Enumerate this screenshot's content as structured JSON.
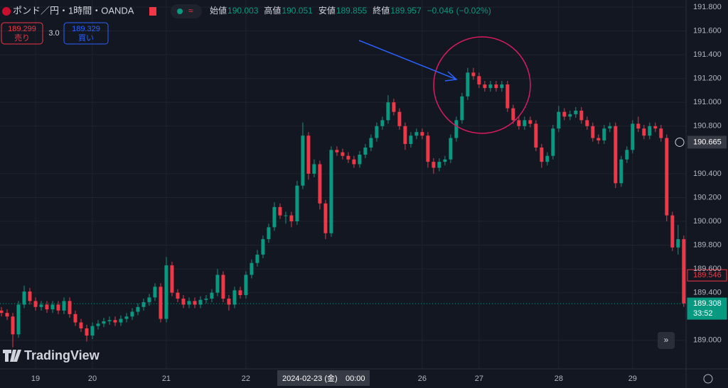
{
  "chart_data": {
    "type": "candlestick",
    "title": "ポンド／円・1時間・OANDA",
    "legend": {
      "open_label": "始値",
      "open": 190.003,
      "high_label": "高値",
      "high": 190.051,
      "low_label": "安値",
      "low": 189.855,
      "close_label": "終値",
      "close": 189.957,
      "change": {
        "value": -0.046,
        "label": "−0.046"
      },
      "change_pct": {
        "value": -0.02,
        "label": "(−0.02%)"
      }
    },
    "trade": {
      "sell_price": 189.299,
      "sell_label": "売り",
      "spread": {
        "value": 3,
        "label": "3.0"
      },
      "buy_price": 189.329,
      "buy_label": "買い"
    },
    "up_color": "#089981",
    "down_color": "#f23645",
    "open": [
      189.25,
      189.23,
      189.2,
      189.05,
      189.3,
      189.41,
      189.33,
      189.28,
      189.3,
      189.26,
      189.3,
      189.25,
      189.33,
      189.22,
      189.15,
      189.1,
      189.04,
      189.12,
      189.14,
      189.16,
      189.17,
      189.15,
      189.18,
      189.2,
      189.24,
      189.28,
      189.32,
      189.36,
      189.45,
      189.18,
      189.63,
      189.4,
      189.35,
      189.3,
      189.33,
      189.3,
      189.34,
      189.35,
      189.4,
      189.55,
      189.35,
      189.3,
      189.42,
      189.38,
      189.55,
      189.65,
      189.72,
      189.85,
      189.95,
      190.12,
      190.05,
      190.05,
      190.0,
      190.3,
      190.72,
      190.4,
      190.48,
      190.15,
      189.9,
      190.6,
      190.58,
      190.55,
      190.52,
      190.48,
      190.56,
      190.62,
      190.7,
      190.8,
      190.85,
      191.0,
      190.92,
      190.8,
      190.65,
      190.72,
      190.75,
      190.72,
      190.5,
      190.45,
      190.5,
      190.52,
      190.7,
      190.85,
      191.05,
      191.25,
      191.22,
      191.15,
      191.12,
      191.15,
      191.12,
      191.15,
      190.95,
      190.85,
      190.8,
      190.85,
      190.82,
      190.62,
      190.5,
      190.55,
      190.78,
      190.92,
      190.88,
      190.9,
      190.93,
      190.85,
      190.8,
      190.7,
      190.68,
      190.78,
      190.8,
      190.32,
      190.52,
      190.6,
      190.82,
      190.78,
      190.72,
      190.8,
      190.78,
      190.7,
      190.05,
      189.78,
      189.85
    ],
    "high": [
      189.28,
      189.26,
      189.23,
      189.33,
      189.46,
      189.44,
      189.36,
      189.33,
      189.33,
      189.33,
      189.33,
      189.36,
      189.36,
      189.25,
      189.18,
      189.13,
      189.15,
      189.17,
      189.19,
      189.2,
      189.2,
      189.21,
      189.23,
      189.27,
      189.31,
      189.35,
      189.39,
      189.48,
      189.48,
      189.7,
      189.66,
      189.43,
      189.38,
      189.36,
      189.36,
      189.37,
      189.38,
      189.43,
      189.6,
      189.58,
      189.38,
      189.45,
      189.45,
      189.58,
      189.68,
      189.76,
      189.88,
      189.98,
      190.16,
      190.15,
      190.08,
      190.08,
      190.34,
      190.83,
      190.75,
      190.52,
      190.51,
      190.18,
      190.63,
      190.63,
      190.61,
      190.58,
      190.55,
      190.59,
      190.65,
      190.73,
      190.83,
      190.88,
      191.06,
      191.03,
      190.95,
      190.83,
      190.75,
      190.78,
      190.78,
      190.75,
      190.53,
      190.53,
      190.55,
      190.73,
      190.88,
      191.08,
      191.29,
      191.29,
      191.25,
      191.18,
      191.18,
      191.18,
      191.18,
      191.18,
      190.98,
      190.88,
      190.88,
      190.88,
      190.85,
      190.65,
      190.58,
      190.81,
      190.97,
      190.95,
      190.93,
      190.96,
      190.96,
      190.88,
      190.83,
      190.73,
      190.81,
      190.83,
      190.83,
      190.55,
      190.63,
      190.85,
      190.88,
      190.81,
      190.83,
      190.83,
      190.81,
      190.73,
      190.08,
      189.97,
      189.88
    ],
    "low": [
      189.2,
      189.17,
      188.94,
      189.02,
      189.27,
      189.3,
      189.25,
      189.25,
      189.23,
      189.23,
      189.22,
      189.22,
      189.19,
      189.12,
      189.07,
      188.99,
      189.01,
      189.09,
      189.11,
      189.13,
      189.12,
      189.12,
      189.15,
      189.17,
      189.21,
      189.25,
      189.29,
      189.33,
      189.15,
      189.15,
      189.37,
      189.32,
      189.27,
      189.27,
      189.27,
      189.27,
      189.31,
      189.32,
      189.37,
      189.32,
      189.25,
      189.27,
      189.35,
      189.35,
      189.52,
      189.62,
      189.69,
      189.82,
      189.92,
      190.02,
      189.98,
      189.95,
      189.97,
      190.27,
      190.35,
      190.37,
      190.1,
      189.85,
      189.87,
      190.55,
      190.52,
      190.49,
      190.45,
      190.45,
      190.53,
      190.59,
      190.67,
      190.77,
      190.82,
      190.89,
      190.77,
      190.6,
      190.62,
      190.69,
      190.69,
      190.45,
      190.4,
      190.42,
      190.47,
      190.49,
      190.67,
      190.82,
      191.02,
      191.19,
      191.12,
      191.09,
      191.09,
      191.09,
      191.09,
      190.92,
      190.82,
      190.77,
      190.77,
      190.79,
      190.59,
      190.45,
      190.47,
      190.52,
      190.75,
      190.85,
      190.85,
      190.87,
      190.82,
      190.77,
      190.67,
      190.65,
      190.65,
      190.75,
      190.28,
      190.29,
      190.49,
      190.57,
      190.75,
      190.69,
      190.69,
      190.75,
      190.67,
      190.0,
      189.75,
      189.72,
      189.28
    ],
    "close": [
      189.23,
      189.2,
      189.05,
      189.3,
      189.41,
      189.33,
      189.28,
      189.3,
      189.26,
      189.3,
      189.25,
      189.33,
      189.22,
      189.15,
      189.1,
      189.04,
      189.12,
      189.14,
      189.16,
      189.17,
      189.15,
      189.18,
      189.2,
      189.24,
      189.28,
      189.32,
      189.36,
      189.45,
      189.18,
      189.63,
      189.4,
      189.35,
      189.3,
      189.33,
      189.3,
      189.34,
      189.35,
      189.4,
      189.55,
      189.35,
      189.3,
      189.42,
      189.38,
      189.55,
      189.65,
      189.72,
      189.85,
      189.95,
      190.12,
      190.05,
      190.05,
      190.0,
      190.3,
      190.72,
      190.4,
      190.48,
      190.15,
      189.9,
      190.6,
      190.58,
      190.55,
      190.52,
      190.48,
      190.56,
      190.62,
      190.7,
      190.8,
      190.85,
      191.0,
      190.92,
      190.8,
      190.65,
      190.72,
      190.75,
      190.72,
      190.5,
      190.45,
      190.5,
      190.52,
      190.7,
      190.85,
      191.05,
      191.25,
      191.22,
      191.15,
      191.12,
      191.15,
      191.12,
      191.15,
      190.95,
      190.85,
      190.8,
      190.85,
      190.82,
      190.62,
      190.5,
      190.55,
      190.78,
      190.92,
      190.88,
      190.9,
      190.93,
      190.85,
      190.8,
      190.7,
      190.68,
      190.78,
      190.8,
      190.32,
      190.52,
      190.6,
      190.82,
      190.78,
      190.72,
      190.8,
      190.78,
      190.7,
      190.05,
      189.78,
      189.85,
      189.31
    ],
    "xlim": [
      -0.25,
      120.4
    ],
    "ylim": [
      188.76,
      191.86
    ],
    "xticks": [
      {
        "value": 6,
        "label": "19"
      },
      {
        "value": 16,
        "label": "20"
      },
      {
        "value": 29,
        "label": "21"
      },
      {
        "value": 43,
        "label": "22"
      },
      {
        "value": 74,
        "label": "26"
      },
      {
        "value": 84,
        "label": "27"
      },
      {
        "value": 98,
        "label": "28"
      },
      {
        "value": 111,
        "label": "29"
      }
    ],
    "yticks": [
      {
        "value": 189,
        "label": "189.000"
      },
      {
        "value": 189.4,
        "label": "189.400"
      },
      {
        "value": 189.6,
        "label": "189.600"
      },
      {
        "value": 189.8,
        "label": "189.800"
      },
      {
        "value": 190,
        "label": "190.000"
      },
      {
        "value": 190.2,
        "label": "190.200"
      },
      {
        "value": 190.4,
        "label": "190.400"
      },
      {
        "value": 190.8,
        "label": "190.800"
      },
      {
        "value": 191,
        "label": "191.000"
      },
      {
        "value": 191.2,
        "label": "191.200"
      },
      {
        "value": 191.4,
        "label": "191.400"
      },
      {
        "value": 191.6,
        "label": "191.600"
      },
      {
        "value": 191.8,
        "label": "191.800"
      }
    ],
    "grid": true,
    "crosshair": {
      "price": 190.665,
      "date": "2024-02-23 (金)",
      "time": "00:00"
    },
    "price_lines": [
      {
        "value": 189.546,
        "color": "#f23645"
      },
      {
        "value": 189.308,
        "color": "#089981",
        "countdown": "33:52"
      }
    ],
    "logo": "TradingView"
  }
}
